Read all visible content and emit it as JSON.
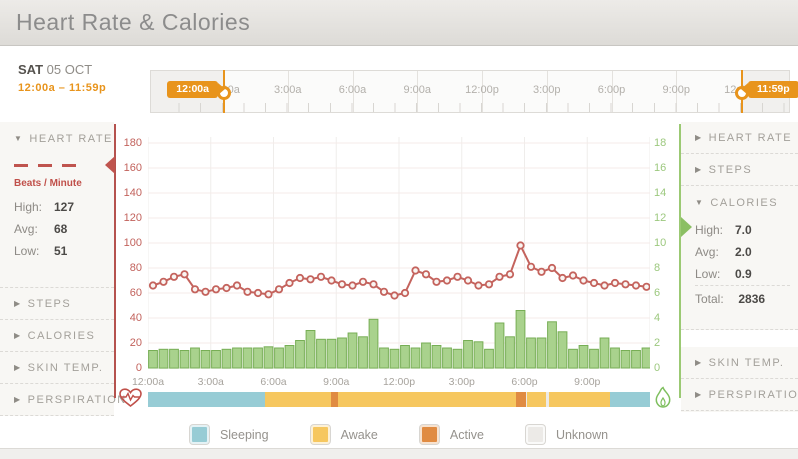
{
  "header": {
    "title": "Heart Rate & Calories"
  },
  "date_panel": {
    "day": "SAT",
    "date": "05 OCT",
    "range": "12:00a – 11:59p"
  },
  "slider": {
    "start_badge": "12:00a",
    "end_badge": "11:59p",
    "tick_labels": [
      "12:00a",
      "3:00a",
      "6:00a",
      "9:00a",
      "12:00p",
      "3:00p",
      "6:00p",
      "9:00p",
      "12:00a"
    ]
  },
  "left_sidebar": {
    "heart_rate": {
      "label": "HEART RATE",
      "unit": "Beats / Minute",
      "stats": [
        {
          "label": "High:",
          "value": "127"
        },
        {
          "label": "Avg:",
          "value": "68"
        },
        {
          "label": "Low:",
          "value": "51"
        }
      ]
    },
    "items": [
      "STEPS",
      "CALORIES",
      "SKIN TEMP.",
      "PERSPIRATION"
    ]
  },
  "right_sidebar": {
    "items_top": [
      "HEART RATE",
      "STEPS"
    ],
    "calories": {
      "label": "CALORIES",
      "stats": [
        {
          "label": "High:",
          "value": "7.0"
        },
        {
          "label": "Avg:",
          "value": "2.0"
        },
        {
          "label": "Low:",
          "value": "0.9"
        }
      ],
      "total_label": "Total:",
      "total_value": "2836"
    },
    "items_bottom": [
      "SKIN TEMP.",
      "PERSPIRATION"
    ]
  },
  "chart_data": {
    "type": "line+bar",
    "x_interval_minutes": 30,
    "x_tick_labels": [
      "12:00a",
      "3:00a",
      "6:00a",
      "9:00a",
      "12:00p",
      "3:00p",
      "6:00p",
      "9:00p"
    ],
    "left_axis": {
      "title": "Beats / Minute",
      "ticks": [
        0,
        20,
        40,
        60,
        80,
        100,
        120,
        140,
        160,
        180
      ],
      "range": [
        0,
        190
      ],
      "color": "#c2625c"
    },
    "right_axis": {
      "title": "Calories",
      "ticks": [
        0,
        2,
        4,
        6,
        8,
        10,
        12,
        14,
        16,
        18
      ],
      "range": [
        0,
        19
      ],
      "color": "#9cc87e"
    },
    "grid": true,
    "series": [
      {
        "name": "Heart Rate",
        "type": "line",
        "color": "#c4635d",
        "marker_fill": "#f9f5f2",
        "values": [
          66,
          69,
          73,
          75,
          63,
          61,
          63,
          64,
          66,
          61,
          60,
          59,
          63,
          68,
          72,
          71,
          73,
          70,
          67,
          66,
          69,
          67,
          61,
          58,
          60,
          78,
          75,
          69,
          70,
          73,
          70,
          66,
          67,
          73,
          75,
          98,
          81,
          77,
          80,
          72,
          74,
          70,
          68,
          66,
          68,
          67,
          66,
          65
        ]
      },
      {
        "name": "Calories",
        "type": "bar",
        "color": "#a9d28d",
        "border": "#77ae55",
        "values": [
          1.4,
          1.5,
          1.5,
          1.4,
          1.6,
          1.4,
          1.4,
          1.5,
          1.6,
          1.6,
          1.6,
          1.7,
          1.6,
          1.8,
          2.2,
          3.0,
          2.3,
          2.3,
          2.4,
          2.8,
          2.5,
          3.9,
          1.6,
          1.5,
          1.8,
          1.6,
          2.0,
          1.8,
          1.6,
          1.5,
          2.2,
          2.1,
          1.5,
          3.6,
          2.5,
          4.6,
          2.4,
          2.4,
          3.7,
          2.9,
          1.5,
          1.8,
          1.5,
          2.4,
          1.6,
          1.4,
          1.4,
          1.6
        ]
      }
    ],
    "activity_band": {
      "segments": [
        {
          "state": "Sleeping",
          "start_pct": 0,
          "end_pct": 23.4
        },
        {
          "state": "Awake",
          "start_pct": 23.4,
          "end_pct": 36.4
        },
        {
          "state": "Active",
          "start_pct": 36.4,
          "end_pct": 37.8
        },
        {
          "state": "Awake",
          "start_pct": 37.8,
          "end_pct": 73.4
        },
        {
          "state": "Active",
          "start_pct": 73.4,
          "end_pct": 75.4
        },
        {
          "state": "Awake",
          "start_pct": 75.4,
          "end_pct": 79.2
        },
        {
          "state": "Unknown",
          "start_pct": 79.2,
          "end_pct": 79.8
        },
        {
          "state": "Awake",
          "start_pct": 79.8,
          "end_pct": 92.0
        },
        {
          "state": "Sleeping",
          "start_pct": 92.0,
          "end_pct": 100
        }
      ]
    }
  },
  "legend": {
    "items": [
      {
        "label": "Sleeping",
        "color": "#97ccd5"
      },
      {
        "label": "Awake",
        "color": "#f6c75f"
      },
      {
        "label": "Active",
        "color": "#e08b42"
      },
      {
        "label": "Unknown",
        "color": "#eceae7"
      }
    ]
  },
  "colors": {
    "accent_orange": "#e8941c",
    "heart_red": "#c4635d",
    "axis_red": "#b5524e",
    "calorie_green": "#a9d28d",
    "axis_green": "#9bc973",
    "grid_h": "#f6ebe9",
    "grid_v": "#efedeb"
  }
}
